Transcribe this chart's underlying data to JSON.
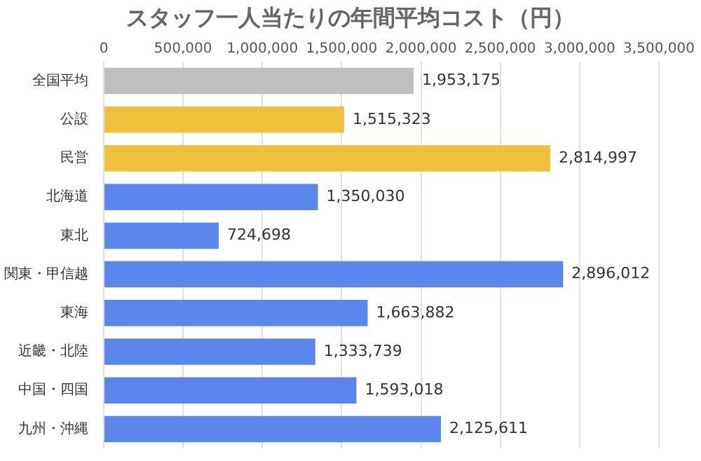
{
  "chart_data": {
    "type": "bar",
    "orientation": "horizontal",
    "title": "スタッフ一人当たりの年間平均コスト（円）",
    "categories": [
      "全国平均",
      "公設",
      "民営",
      "北海道",
      "東北",
      "関東・甲信越",
      "東海",
      "近畿・北陸",
      "中国・四国",
      "九州・沖縄"
    ],
    "values": [
      1953175,
      1515323,
      2814997,
      1350030,
      724698,
      2896012,
      1663882,
      1333739,
      1593018,
      2125611
    ],
    "colors": [
      "#bfbfbf",
      "#f0bf3c",
      "#f0bf3c",
      "#5b86ec",
      "#5b86ec",
      "#5b86ec",
      "#5b86ec",
      "#5b86ec",
      "#5b86ec",
      "#5b86ec"
    ],
    "value_labels": [
      "1,953,175",
      "1,515,323",
      "2,814,997",
      "1,350,030",
      "724,698",
      "2,896,012",
      "1,663,882",
      "1,333,739",
      "1,593,018",
      "2,125,611"
    ],
    "xlim": [
      0,
      3500000
    ],
    "xticks": [
      0,
      {
        "value": 500000,
        "label": "500,000"
      },
      {
        "value": 1000000,
        "label": "1,000,000"
      },
      {
        "value": 1500000,
        "label": "1,500,000"
      },
      {
        "value": 2000000,
        "label": "2,000,000"
      },
      {
        "value": 2500000,
        "label": "2,500,000"
      },
      {
        "value": 3000000,
        "label": "3,000,000"
      },
      {
        "value": 3500000,
        "label": "3,500,000"
      }
    ],
    "grid": "x",
    "legend": false
  }
}
